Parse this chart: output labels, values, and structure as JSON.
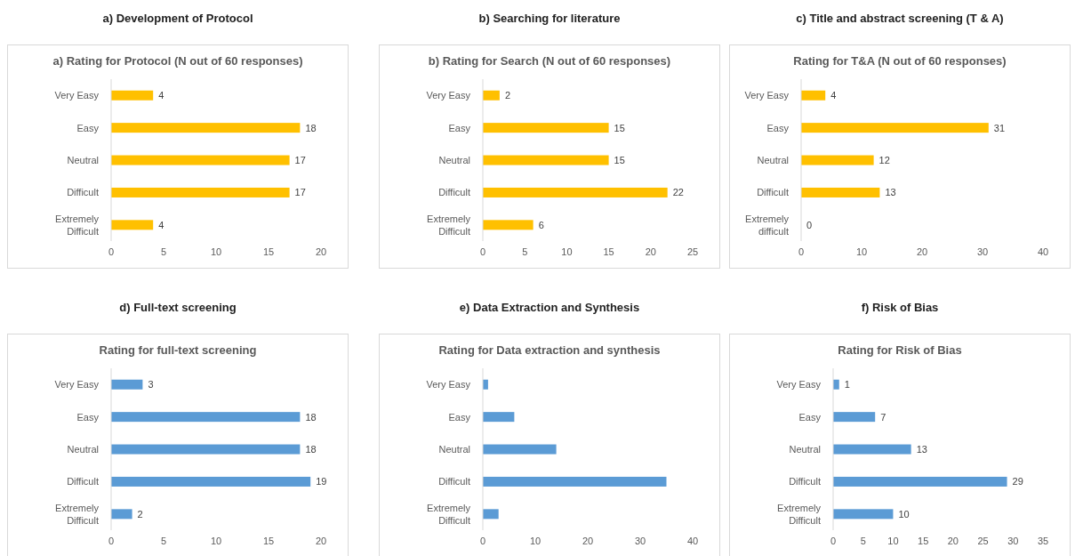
{
  "chart_data": [
    {
      "type": "bar",
      "orientation": "horizontal",
      "title": "a)    Development of Protocol",
      "subtitle": "a) Rating for Protocol (N out of 60  responses)",
      "categories": [
        "Very Easy",
        "Easy",
        "Neutral",
        "Difficult",
        "Extremely Difficult"
      ],
      "values": [
        4,
        18,
        17,
        17,
        4
      ],
      "color": "#ffc000",
      "xlim": [
        0,
        20
      ],
      "xticks": [
        0,
        5,
        10,
        15,
        20
      ],
      "data_labels": true
    },
    {
      "type": "bar",
      "orientation": "horizontal",
      "title": "b) Searching for literature",
      "subtitle": "b) Rating for Search (N out of 60  responses)",
      "categories": [
        "Very Easy",
        "Easy",
        "Neutral",
        "Difficult",
        "Extremely Difficult"
      ],
      "values": [
        2,
        15,
        15,
        22,
        6
      ],
      "color": "#ffc000",
      "xlim": [
        0,
        25
      ],
      "xticks": [
        0,
        5,
        10,
        15,
        20,
        25
      ],
      "data_labels": true
    },
    {
      "type": "bar",
      "orientation": "horizontal",
      "title": "c) Title and abstract screening (T & A)",
      "subtitle": "Rating for T&A (N out of 60 responses)",
      "categories": [
        "Very Easy",
        "Easy",
        "Neutral",
        "Difficult",
        "Extremely difficult"
      ],
      "values": [
        4,
        31,
        12,
        13,
        0
      ],
      "color": "#ffc000",
      "xlim": [
        0,
        40
      ],
      "xticks": [
        0,
        10,
        20,
        30,
        40
      ],
      "data_labels": true
    },
    {
      "type": "bar",
      "orientation": "horizontal",
      "title": "d) Full-text screening",
      "subtitle": "Rating for full-text screening",
      "categories": [
        "Very Easy",
        "Easy",
        "Neutral",
        "Difficult",
        "Extremely Difficult"
      ],
      "values": [
        3,
        18,
        18,
        19,
        2
      ],
      "color": "#5b9bd5",
      "xlim": [
        0,
        20
      ],
      "xticks": [
        0,
        5,
        10,
        15,
        20
      ],
      "data_labels": true
    },
    {
      "type": "bar",
      "orientation": "horizontal",
      "title": "e) Data Extraction and Synthesis",
      "subtitle": "Rating for Data extraction and synthesis",
      "categories": [
        "Very Easy",
        "Easy",
        "Neutral",
        "Difficult",
        "Extremely Difficult"
      ],
      "values": [
        1,
        6,
        14,
        35,
        3
      ],
      "color": "#5b9bd5",
      "xlim": [
        0,
        40
      ],
      "xticks": [
        0,
        10,
        20,
        30,
        40
      ]
    },
    {
      "type": "bar",
      "orientation": "horizontal",
      "title": "f) Risk of Bias",
      "subtitle": "Rating for Risk of Bias",
      "categories": [
        "Very Easy",
        "Easy",
        "Neutral",
        "Difficult",
        "Extremely Difficult"
      ],
      "values": [
        1,
        7,
        13,
        29,
        10
      ],
      "color": "#5b9bd5",
      "xlim": [
        0,
        35
      ],
      "xticks": [
        0,
        5,
        10,
        15,
        20,
        25,
        30,
        35
      ],
      "data_labels": true
    }
  ]
}
